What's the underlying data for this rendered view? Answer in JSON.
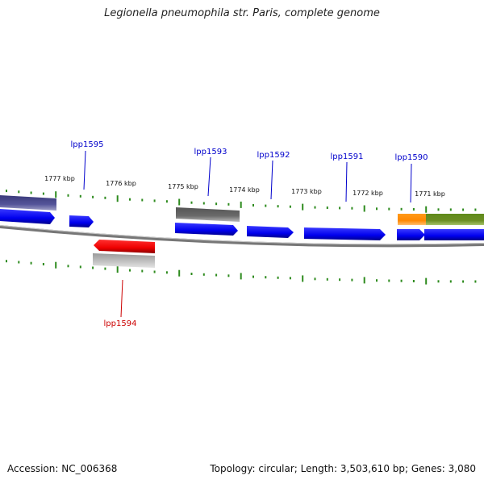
{
  "title": "Legionella pneumophila str. Paris, complete genome",
  "footer": {
    "accession": "Accession: NC_006368",
    "summary": "Topology: circular; Length: 3,503,610 bp; Genes: 3,080"
  },
  "scale_labels": [
    "1777 kbp",
    "1776 kbp",
    "1775 kbp",
    "1774 kbp",
    "1773 kbp",
    "1772 kbp",
    "1771 kbp"
  ],
  "gene_labels": [
    {
      "name": "lpp1595",
      "strand": "forward"
    },
    {
      "name": "lpp1593",
      "strand": "forward"
    },
    {
      "name": "lpp1592",
      "strand": "forward"
    },
    {
      "name": "lpp1591",
      "strand": "forward"
    },
    {
      "name": "lpp1590",
      "strand": "forward"
    },
    {
      "name": "lpp1594",
      "strand": "reverse"
    }
  ],
  "colors": {
    "forward_gene": "#0000ff",
    "reverse_gene": "#ff0000",
    "forward_label": "#0000cc",
    "reverse_label": "#cc0000",
    "tick": "#2e8b1e",
    "backbone": "#888888",
    "feature_purple": "#4a4a8c",
    "feature_gray": "#666666",
    "feature_light_gray": "#bbbbbb",
    "feature_orange": "#ff8c00",
    "feature_olive": "#6b8e23"
  }
}
